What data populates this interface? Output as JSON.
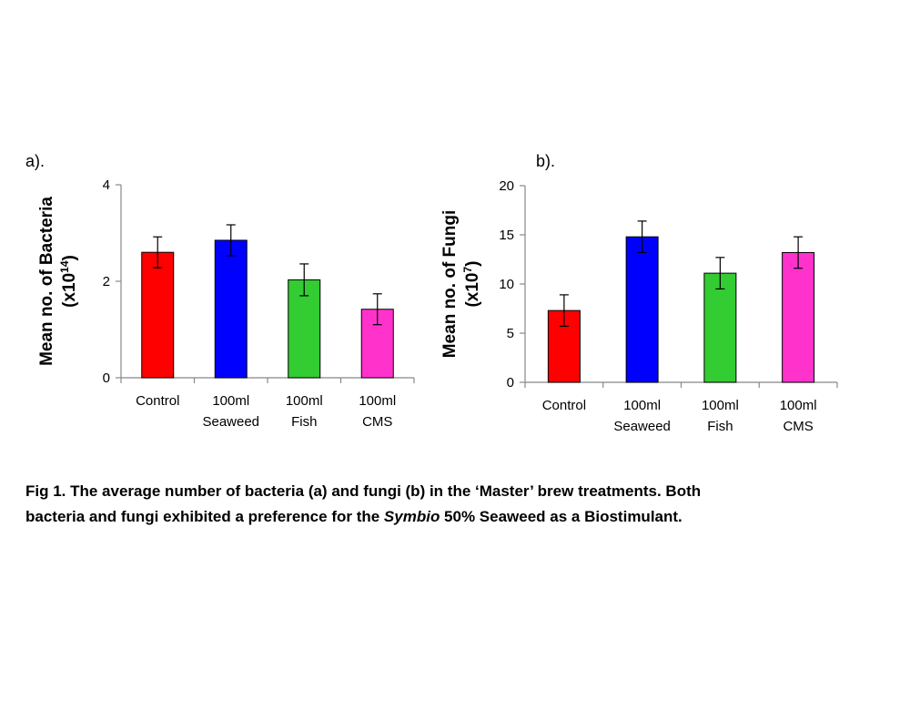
{
  "chart_data": [
    {
      "type": "bar",
      "panel_label": "a).",
      "categories": [
        [
          "Control"
        ],
        [
          "100ml",
          "Seaweed"
        ],
        [
          "100ml",
          "Fish"
        ],
        [
          "100ml",
          "CMS"
        ]
      ],
      "values": [
        2.6,
        2.85,
        2.03,
        1.42
      ],
      "errors": [
        0.32,
        0.32,
        0.33,
        0.32
      ],
      "colors": [
        "#ff0000",
        "#0000ff",
        "#33cc33",
        "#ff33cc"
      ],
      "ylabel": "Mean no. of Bacteria",
      "ylabel_unit_base": "(x10",
      "ylabel_unit_exp": "14",
      "ylabel_unit_close": ")",
      "ylim": [
        0,
        4
      ],
      "yticks": [
        0,
        2,
        4
      ],
      "grid": false,
      "legend": "none"
    },
    {
      "type": "bar",
      "panel_label": "b).",
      "categories": [
        [
          "Control"
        ],
        [
          "100ml",
          "Seaweed"
        ],
        [
          "100ml",
          "Fish"
        ],
        [
          "100ml",
          "CMS"
        ]
      ],
      "values": [
        7.3,
        14.8,
        11.1,
        13.2
      ],
      "errors": [
        1.6,
        1.6,
        1.6,
        1.6
      ],
      "colors": [
        "#ff0000",
        "#0000ff",
        "#33cc33",
        "#ff33cc"
      ],
      "ylabel": "Mean no. of Fungi",
      "ylabel_unit_base": "(x10",
      "ylabel_unit_exp": "7",
      "ylabel_unit_close": ")",
      "ylim": [
        0,
        20
      ],
      "yticks": [
        0,
        5,
        10,
        15,
        20
      ],
      "grid": false,
      "legend": "none"
    }
  ],
  "caption": {
    "line1": "Fig 1. The average number of bacteria (a) and fungi (b) in the ‘Master’ brew treatments. Both",
    "line2_pre": "bacteria and fungi exhibited a preference for the ",
    "line2_italic": "Symbio",
    "line2_post": " 50% Seaweed as a Biostimulant."
  }
}
